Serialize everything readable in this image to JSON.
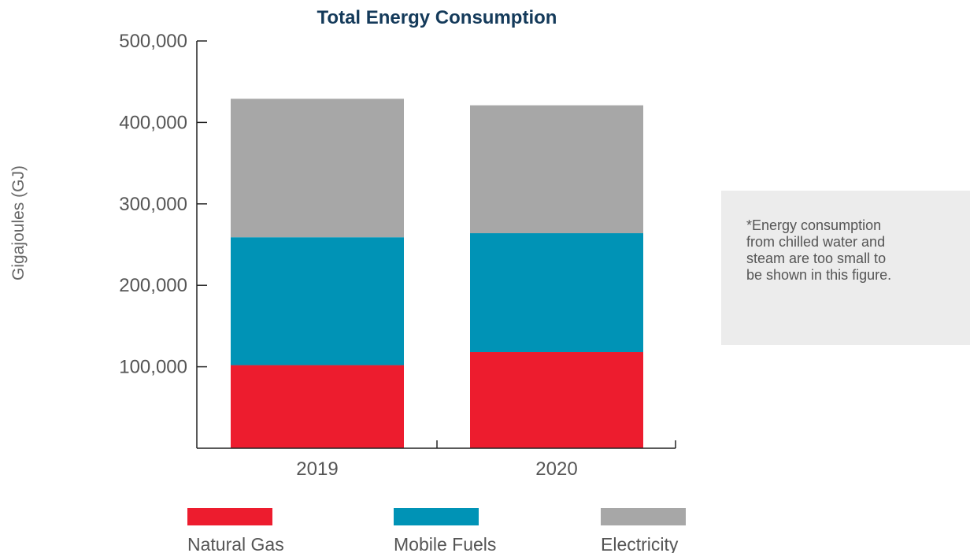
{
  "chart_data": {
    "type": "bar",
    "stacked": true,
    "title": "Total Energy Consumption",
    "xlabel": "",
    "ylabel": "Gigajoules (GJ)",
    "categories": [
      "2019",
      "2020"
    ],
    "series": [
      {
        "name": "Natural Gas",
        "color": "#ed1c2e",
        "values": [
          102000,
          118000
        ]
      },
      {
        "name": "Mobile Fuels",
        "color": "#0093b6",
        "values": [
          157000,
          146000
        ]
      },
      {
        "name": "Electricity",
        "color": "#a7a7a7",
        "values": [
          170000,
          157000
        ]
      }
    ],
    "ylim": [
      0,
      500000
    ],
    "yticks": [
      100000,
      200000,
      300000,
      400000,
      500000
    ],
    "ytick_labels": [
      "100,000",
      "200,000",
      "300,000",
      "400,000",
      "500,000"
    ],
    "grid": false,
    "legend_position": "bottom",
    "title_color": "#143a5a",
    "axis_color": "#222222"
  },
  "note": {
    "lines": [
      "*Energy consumption",
      "from chilled water and",
      "steam are too small to",
      "be shown in this figure."
    ]
  }
}
